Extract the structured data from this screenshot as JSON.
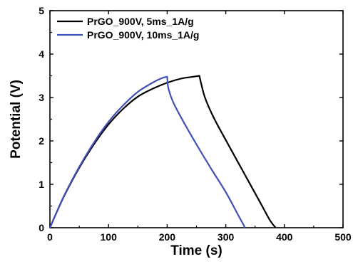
{
  "chart_data": {
    "type": "line",
    "xlabel": "Time (s)",
    "ylabel": "Potential (V)",
    "xlim": [
      0,
      500
    ],
    "ylim": [
      0,
      5
    ],
    "xticks": [
      0,
      100,
      200,
      300,
      400,
      500
    ],
    "yticks": [
      0,
      1,
      2,
      3,
      4,
      5
    ],
    "grid": false,
    "legend_position": "top-left",
    "series": [
      {
        "name": "PrGO_900V, 5ms_1A/g",
        "color": "#000000",
        "x": [
          0,
          10,
          25,
          50,
          75,
          100,
          125,
          150,
          175,
          200,
          225,
          240,
          255,
          258,
          265,
          280,
          300,
          320,
          340,
          360,
          375,
          385
        ],
        "y": [
          0,
          0.31,
          0.75,
          1.38,
          1.92,
          2.38,
          2.74,
          3.02,
          3.2,
          3.34,
          3.44,
          3.47,
          3.5,
          3.32,
          2.98,
          2.52,
          2.02,
          1.53,
          1.04,
          0.55,
          0.18,
          0
        ]
      },
      {
        "name": "PrGO_900V, 10ms_1A/g",
        "color": "#3F51B5",
        "x": [
          0,
          10,
          25,
          50,
          75,
          100,
          125,
          150,
          175,
          190,
          200,
          202,
          210,
          225,
          250,
          275,
          300,
          320,
          333
        ],
        "y": [
          0,
          0.31,
          0.76,
          1.4,
          1.96,
          2.44,
          2.82,
          3.13,
          3.34,
          3.44,
          3.48,
          3.22,
          2.9,
          2.51,
          1.92,
          1.36,
          0.82,
          0.32,
          0
        ]
      }
    ]
  }
}
